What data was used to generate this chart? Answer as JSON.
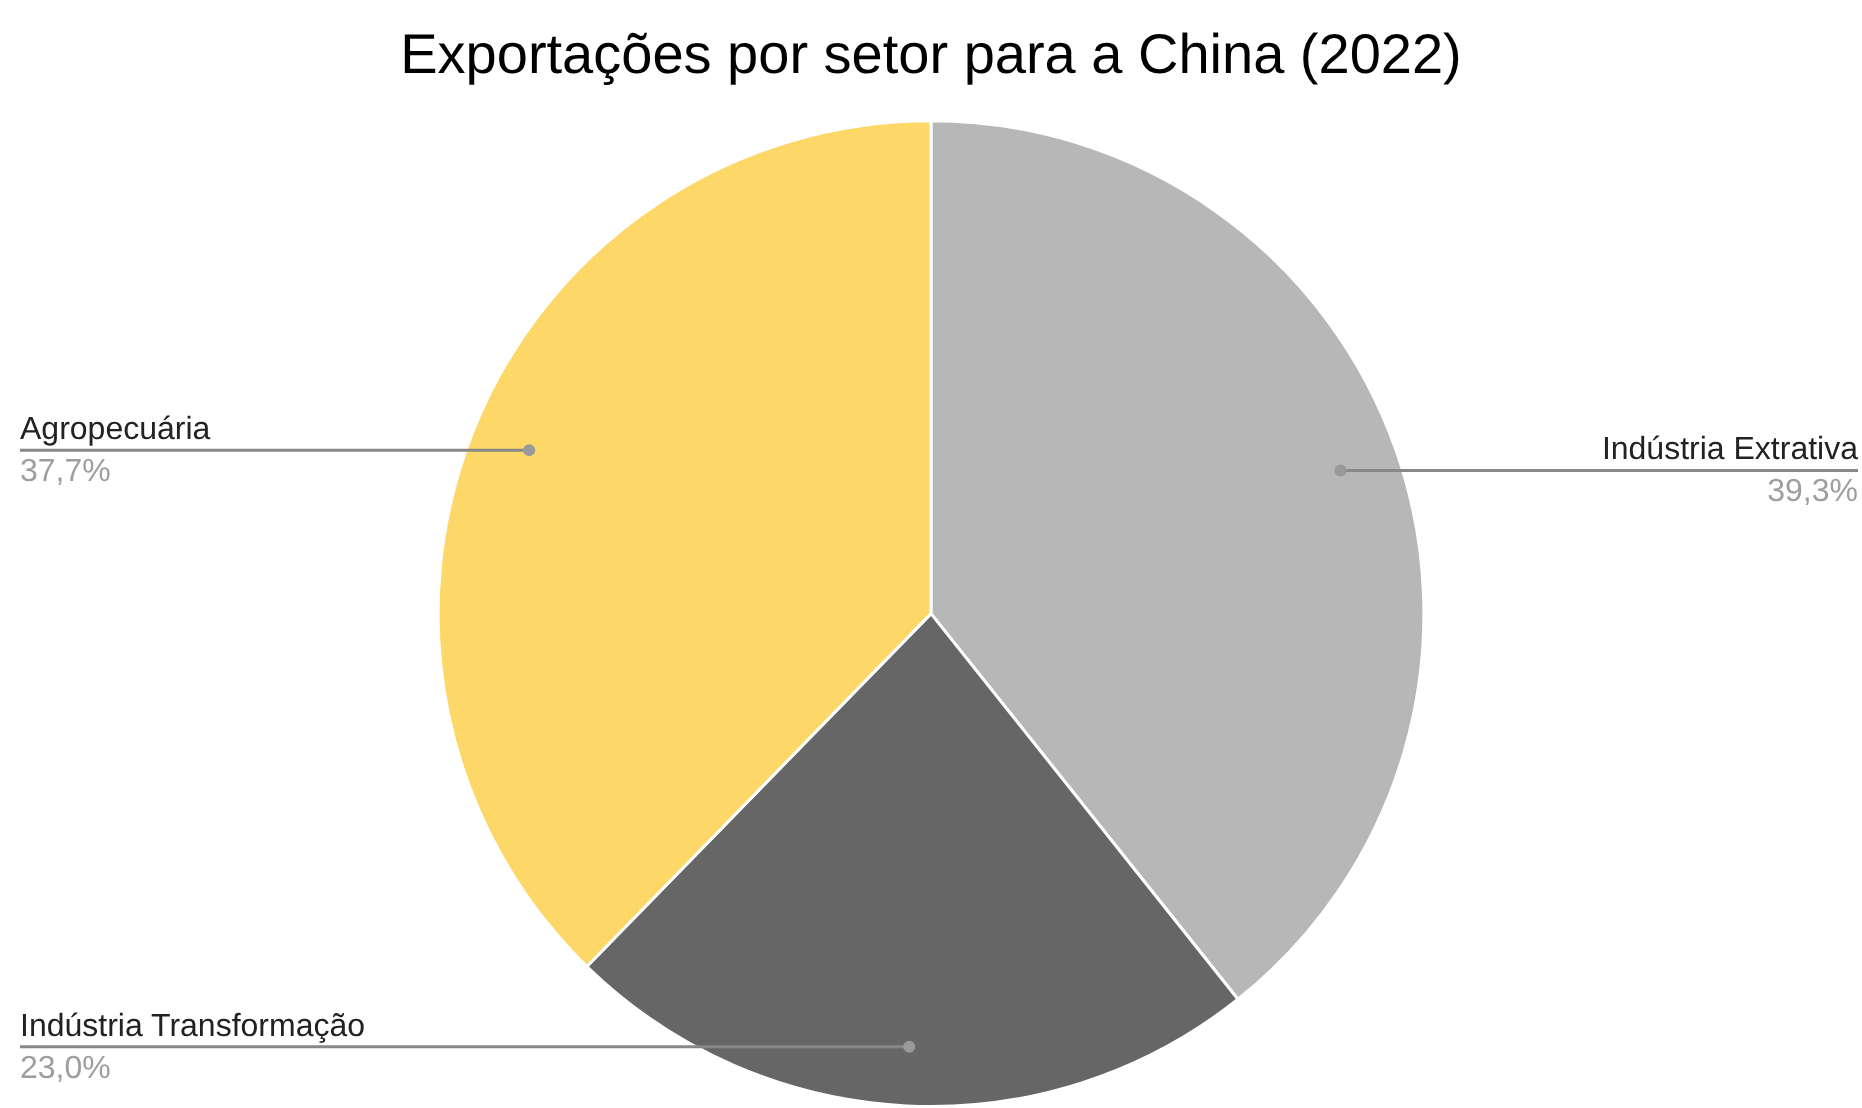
{
  "chart_data": {
    "type": "pie",
    "title": "Exportações por setor para a China (2022)",
    "categories": [
      "Indústria Extrativa",
      "Indústria Transformação",
      "Agropecuária"
    ],
    "values": [
      39.3,
      23.0,
      37.7
    ],
    "value_labels": [
      "39,3%",
      "23,0%",
      "37,7%"
    ],
    "colors": [
      "#b7b7b7",
      "#666666",
      "#fdd868"
    ],
    "legend": false
  }
}
